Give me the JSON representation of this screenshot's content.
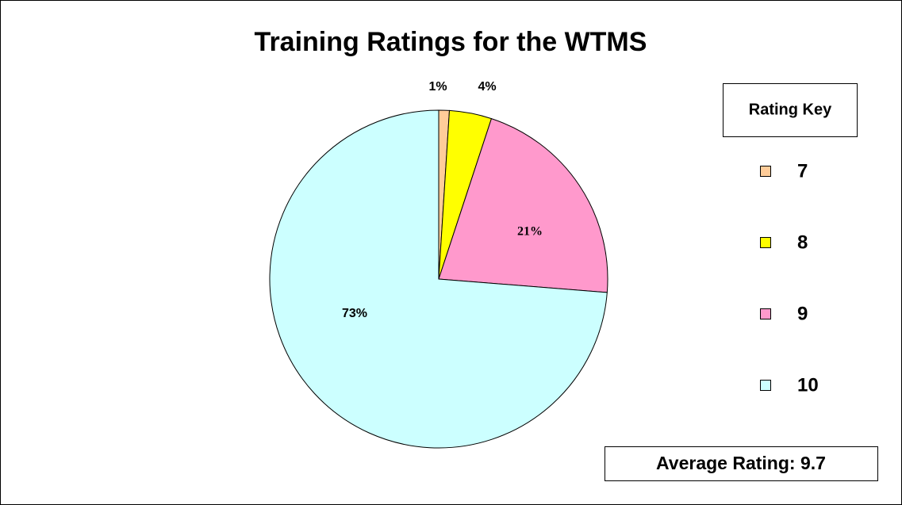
{
  "chart_data": {
    "type": "pie",
    "title": "Training Ratings for the WTMS",
    "categories": [
      "7",
      "8",
      "9",
      "10"
    ],
    "values": [
      1,
      4,
      21,
      73
    ],
    "value_labels": [
      "1%",
      "4%",
      "21%",
      "73%"
    ],
    "colors": [
      "#ffcc99",
      "#ffff00",
      "#ff99cc",
      "#ccffff"
    ],
    "legend_title": "Rating Key",
    "legend": "right",
    "annotation": "Average Rating: 9.7"
  }
}
